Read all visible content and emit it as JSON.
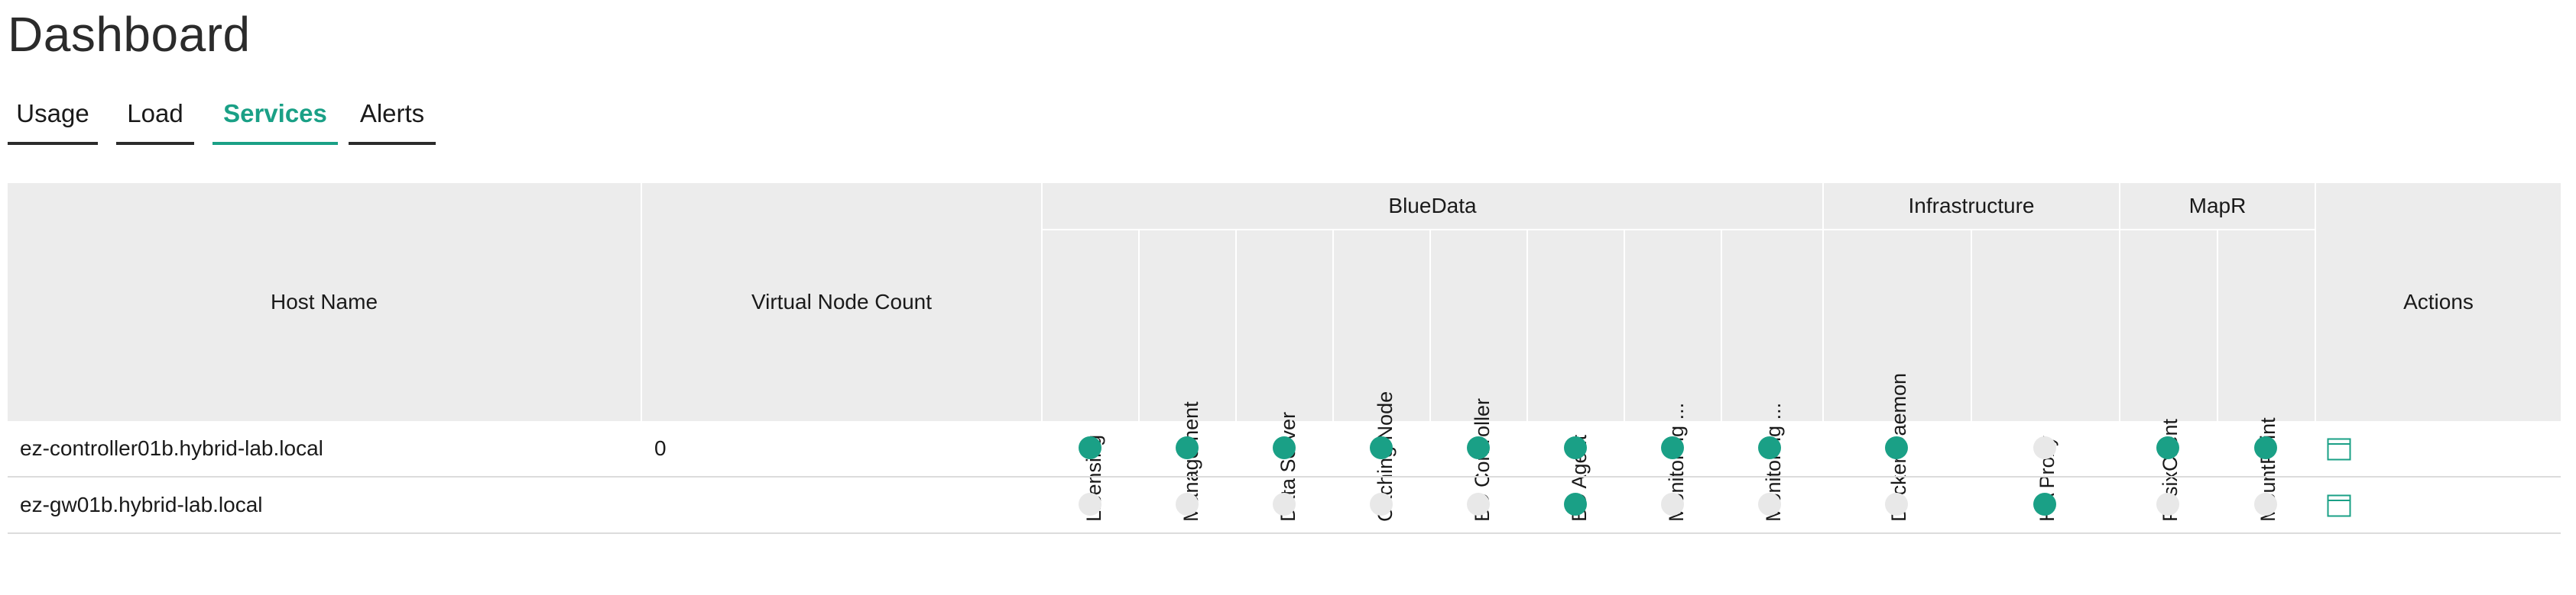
{
  "page": {
    "title": "Dashboard"
  },
  "tabs": [
    {
      "label": "Usage",
      "active": false
    },
    {
      "label": "Load",
      "active": false
    },
    {
      "label": "Services",
      "active": true
    },
    {
      "label": "Alerts",
      "active": false
    }
  ],
  "table": {
    "host_name_header": "Host Name",
    "virtual_node_count_header": "Virtual Node Count",
    "actions_header": "Actions",
    "groups": [
      {
        "name": "BlueData",
        "columns": [
          "Licensing",
          "Management",
          "Data Server",
          "Caching Node",
          "BD Controller",
          "BD Agent",
          "Monitoring ...",
          "Monitoring ..."
        ]
      },
      {
        "name": "Infrastructure",
        "columns": [
          "Docker Daemon",
          "HA Proxy"
        ]
      },
      {
        "name": "MapR",
        "columns": [
          "PosixClient",
          "MountPoint"
        ]
      }
    ],
    "rows": [
      {
        "host": "ez-controller01b.hybrid-lab.local",
        "virtual_node_count": "0",
        "status": [
          true,
          true,
          true,
          true,
          true,
          true,
          true,
          true,
          true,
          false,
          true,
          true
        ]
      },
      {
        "host": "ez-gw01b.hybrid-lab.local",
        "virtual_node_count": "",
        "status": [
          false,
          false,
          false,
          false,
          false,
          true,
          false,
          false,
          false,
          true,
          false,
          false
        ]
      }
    ]
  },
  "colors": {
    "accent": "#1aa086",
    "status_on": "#1aa086",
    "status_off": "#e8e8e8",
    "header_bg": "#ececec"
  },
  "icons": {
    "action": "window-icon",
    "status_on": "status-dot-green",
    "status_off": "status-dot-gray"
  }
}
